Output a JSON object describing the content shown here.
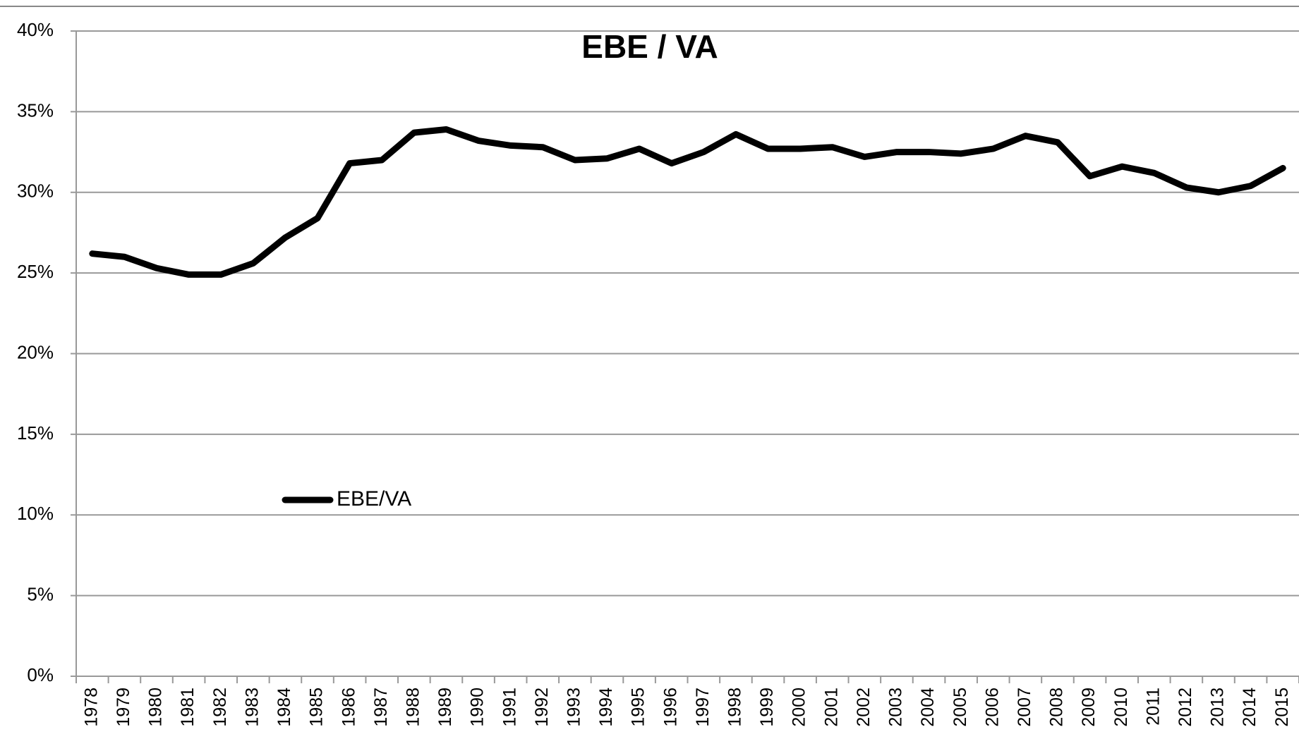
{
  "chart_data": {
    "type": "line",
    "title": "EBE / VA",
    "categories": [
      "1978",
      "1979",
      "1980",
      "1981",
      "1982",
      "1983",
      "1984",
      "1985",
      "1986",
      "1987",
      "1988",
      "1989",
      "1990",
      "1991",
      "1992",
      "1993",
      "1994",
      "1995",
      "1996",
      "1997",
      "1998",
      "1999",
      "2000",
      "2001",
      "2002",
      "2003",
      "2004",
      "2005",
      "2006",
      "2007",
      "2008",
      "2009",
      "2010",
      "2011",
      "2012",
      "2013",
      "2014",
      "2015"
    ],
    "series": [
      {
        "name": "EBE/VA",
        "color": "#000000",
        "values": [
          26.2,
          26.0,
          25.3,
          24.9,
          24.9,
          25.6,
          27.2,
          28.4,
          31.8,
          32.0,
          33.7,
          33.9,
          33.2,
          32.9,
          32.8,
          32.0,
          32.1,
          32.7,
          31.8,
          32.5,
          33.6,
          32.7,
          32.7,
          32.8,
          32.2,
          32.5,
          32.5,
          32.4,
          32.7,
          33.5,
          33.1,
          31.0,
          31.6,
          31.2,
          30.3,
          30.0,
          30.4,
          31.5
        ]
      }
    ],
    "ylim": [
      0,
      40
    ],
    "yticks": [
      {
        "value": 0,
        "label": "0%"
      },
      {
        "value": 5,
        "label": "5%"
      },
      {
        "value": 10,
        "label": "10%"
      },
      {
        "value": 15,
        "label": "15%"
      },
      {
        "value": 20,
        "label": "20%"
      },
      {
        "value": 25,
        "label": "25%"
      },
      {
        "value": 30,
        "label": "30%"
      },
      {
        "value": 35,
        "label": "35%"
      },
      {
        "value": 40,
        "label": "40%"
      }
    ],
    "grid": true
  }
}
